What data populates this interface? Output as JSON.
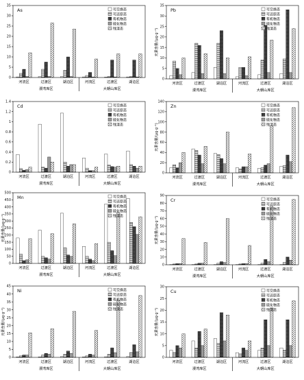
{
  "chart_data": [
    {
      "type": "bar",
      "title": "As",
      "ylabel": "",
      "ylim": [
        0,
        35
      ],
      "yticks": [
        0,
        5,
        10,
        15,
        20,
        25,
        30,
        35
      ],
      "categories": [
        "河流区",
        "过渡区",
        "湖泊区",
        "河流区",
        "过渡区",
        "湖泊区"
      ],
      "groups": [
        "漫湾库区",
        "大朝山库区"
      ],
      "series": [
        {
          "name": "可交换态",
          "values": [
            0.3,
            0.5,
            0.4,
            0.3,
            0.2,
            0.3
          ]
        },
        {
          "name": "可还原态",
          "values": [
            2,
            4,
            3.5,
            1,
            0.5,
            0.5
          ]
        },
        {
          "name": "有机物态",
          "values": [
            4,
            7.5,
            10,
            2.5,
            8.5,
            8.5
          ]
        },
        {
          "name": "硫化物态",
          "values": [
            0.5,
            0.5,
            0.5,
            0.3,
            0.3,
            0.3
          ]
        },
        {
          "name": "残渣态",
          "values": [
            12,
            26.5,
            23.5,
            9,
            11.5,
            11.5
          ]
        }
      ]
    },
    {
      "type": "bar",
      "title": "Pb",
      "ylabel": "元素含量/(μg·g⁻¹)",
      "ylim": [
        0,
        35
      ],
      "yticks": [
        0,
        5,
        10,
        15,
        20,
        25,
        30,
        35
      ],
      "categories": [
        "河流区",
        "过渡区",
        "湖泊区",
        "河流区",
        "过渡区",
        "湖泊区"
      ],
      "groups": [
        "漫湾库区",
        "大朝山库区"
      ],
      "series": [
        {
          "name": "可交换态",
          "values": [
            1.5,
            3,
            5.5,
            1,
            2,
            2.5
          ]
        },
        {
          "name": "可还原态",
          "values": [
            8.5,
            17,
            17,
            5.5,
            9,
            9.5
          ]
        },
        {
          "name": "有机物态",
          "values": [
            5,
            16,
            23,
            5.5,
            25.5,
            33
          ]
        },
        {
          "name": "硫化物态",
          "values": [
            2,
            2.5,
            2.5,
            1.5,
            3,
            3
          ]
        },
        {
          "name": "残渣态",
          "values": [
            10,
            12,
            10,
            10.5,
            18.5,
            24
          ]
        }
      ]
    },
    {
      "type": "bar",
      "title": "Cd",
      "ylabel": "",
      "ylim": [
        0,
        1.4
      ],
      "yticks": [
        0,
        0.2,
        0.4,
        0.6,
        0.8,
        1.0,
        1.2,
        1.4
      ],
      "categories": [
        "河流区",
        "过渡区",
        "湖泊区",
        "河流区",
        "过渡区",
        "湖泊区"
      ],
      "groups": [
        "漫湾库区",
        "大朝山库区"
      ],
      "series": [
        {
          "name": "可交换态",
          "values": [
            0.35,
            0.95,
            1.17,
            0.28,
            0.36,
            0.42
          ]
        },
        {
          "name": "可还原态",
          "values": [
            0.07,
            0.1,
            0.2,
            0.08,
            0.14,
            0.15
          ]
        },
        {
          "name": "有机物态",
          "values": [
            0.04,
            0.08,
            0.12,
            0.03,
            0.11,
            0.12
          ]
        },
        {
          "name": "硫化物态",
          "values": [
            0.05,
            0.3,
            0.15,
            0.03,
            0.1,
            0.08
          ]
        },
        {
          "name": "残渣态",
          "values": [
            0.1,
            0.2,
            0.15,
            0.1,
            0.12,
            0.12
          ]
        }
      ]
    },
    {
      "type": "bar",
      "title": "Zn",
      "ylabel": "元素含量/(μg·g⁻¹)",
      "ylim": [
        0,
        140
      ],
      "yticks": [
        0,
        20,
        40,
        60,
        80,
        100,
        120,
        140
      ],
      "categories": [
        "河流区",
        "过渡区",
        "湖泊区",
        "河流区",
        "过渡区",
        "湖泊区"
      ],
      "groups": [
        "漫湾库区",
        "大朝山库区"
      ],
      "series": [
        {
          "name": "可交换态",
          "values": [
            10,
            47,
            38,
            10,
            9,
            13
          ]
        },
        {
          "name": "可还原态",
          "values": [
            16,
            44,
            36,
            8,
            10,
            14
          ]
        },
        {
          "name": "有机物态",
          "values": [
            10,
            35,
            28,
            12,
            15,
            35
          ]
        },
        {
          "name": "硫化物态",
          "values": [
            20,
            18,
            18,
            12,
            18,
            22
          ]
        },
        {
          "name": "残渣态",
          "values": [
            40,
            52,
            80,
            37,
            92,
            128
          ]
        }
      ]
    },
    {
      "type": "bar",
      "title": "Mn",
      "ylabel": "元素含量/(μg·g⁻¹)",
      "ylim": [
        0,
        500
      ],
      "yticks": [
        0,
        50,
        100,
        150,
        200,
        250,
        300,
        350,
        400,
        450,
        500
      ],
      "categories": [
        "河流区",
        "过渡区",
        "湖泊区",
        "河流区",
        "过渡区",
        "湖泊区"
      ],
      "groups": [
        "漫湾库区",
        "大朝山库区"
      ],
      "series": [
        {
          "name": "可交换态",
          "values": [
            180,
            235,
            355,
            120,
            420,
            460
          ]
        },
        {
          "name": "可还原态",
          "values": [
            65,
            50,
            110,
            50,
            150,
            290
          ]
        },
        {
          "name": "有机物态",
          "values": [
            20,
            40,
            60,
            30,
            90,
            260
          ]
        },
        {
          "name": "硫化物态",
          "values": [
            25,
            30,
            50,
            20,
            55,
            205
          ]
        },
        {
          "name": "残渣态",
          "values": [
            175,
            210,
            280,
            140,
            360,
            330
          ]
        }
      ]
    },
    {
      "type": "bar",
      "title": "Cr",
      "ylabel": "元素含量/(μg·g⁻¹)",
      "ylim": [
        0,
        90
      ],
      "yticks": [
        0,
        10,
        20,
        30,
        40,
        50,
        60,
        70,
        80,
        90
      ],
      "categories": [
        "河流区",
        "过渡区",
        "湖泊区",
        "河流区",
        "过渡区",
        "湖泊区"
      ],
      "groups": [
        "漫湾库区",
        "大朝山库区"
      ],
      "series": [
        {
          "name": "可交换态",
          "values": [
            0.3,
            0.3,
            0.3,
            0.3,
            0.3,
            0.3
          ]
        },
        {
          "name": "可还原态",
          "values": [
            1,
            1,
            2,
            1,
            2,
            3
          ]
        },
        {
          "name": "有机物态",
          "values": [
            1.5,
            2,
            4,
            1.5,
            7,
            10
          ]
        },
        {
          "name": "硫化物态",
          "values": [
            1.5,
            2,
            3,
            1.5,
            4,
            6
          ]
        },
        {
          "name": "残渣态",
          "values": [
            34,
            29,
            60,
            25,
            76,
            85
          ]
        }
      ]
    },
    {
      "type": "bar",
      "title": "Ni",
      "ylabel": "元素含量/(μg·g⁻¹)",
      "ylim": [
        0,
        45
      ],
      "yticks": [
        0,
        5,
        10,
        15,
        20,
        25,
        30,
        35,
        40,
        45
      ],
      "categories": [
        "河流区",
        "过渡区",
        "湖泊区",
        "河流区",
        "过渡区",
        "湖泊区"
      ],
      "groups": [
        "漫湾库区",
        "大朝山库区"
      ],
      "series": [
        {
          "name": "可交换态",
          "values": [
            0.3,
            0.3,
            0.5,
            0.3,
            0.4,
            0.5
          ]
        },
        {
          "name": "可还原态",
          "values": [
            1,
            1.5,
            2,
            1,
            2,
            3
          ]
        },
        {
          "name": "有机物态",
          "values": [
            1.5,
            2.5,
            4,
            2,
            6,
            8
          ]
        },
        {
          "name": "硫化物态",
          "values": [
            1.5,
            2,
            2.5,
            1.5,
            3,
            3.5
          ]
        },
        {
          "name": "残渣态",
          "values": [
            15.5,
            18,
            29,
            17,
            36,
            39
          ]
        }
      ]
    },
    {
      "type": "bar",
      "title": "Cu",
      "ylabel": "元素含量/(μg·g⁻¹)",
      "ylim": [
        0,
        30
      ],
      "yticks": [
        0,
        5,
        10,
        15,
        20,
        25,
        30
      ],
      "categories": [
        "河流区",
        "过渡区",
        "湖泊区",
        "河流区",
        "过渡区",
        "湖泊区"
      ],
      "groups": [
        "漫湾库区",
        "大朝山库区"
      ],
      "series": [
        {
          "name": "可交换态",
          "values": [
            3,
            7,
            8,
            2,
            3,
            4
          ]
        },
        {
          "name": "可还原态",
          "values": [
            2,
            4,
            6,
            1.5,
            4,
            3
          ]
        },
        {
          "name": "有机物态",
          "values": [
            5,
            11,
            19,
            4,
            16,
            16
          ]
        },
        {
          "name": "硫化物态",
          "values": [
            4,
            5,
            7,
            3,
            5,
            5
          ]
        },
        {
          "name": "残渣态",
          "values": [
            10,
            12,
            18,
            7,
            21,
            24
          ]
        }
      ]
    }
  ]
}
